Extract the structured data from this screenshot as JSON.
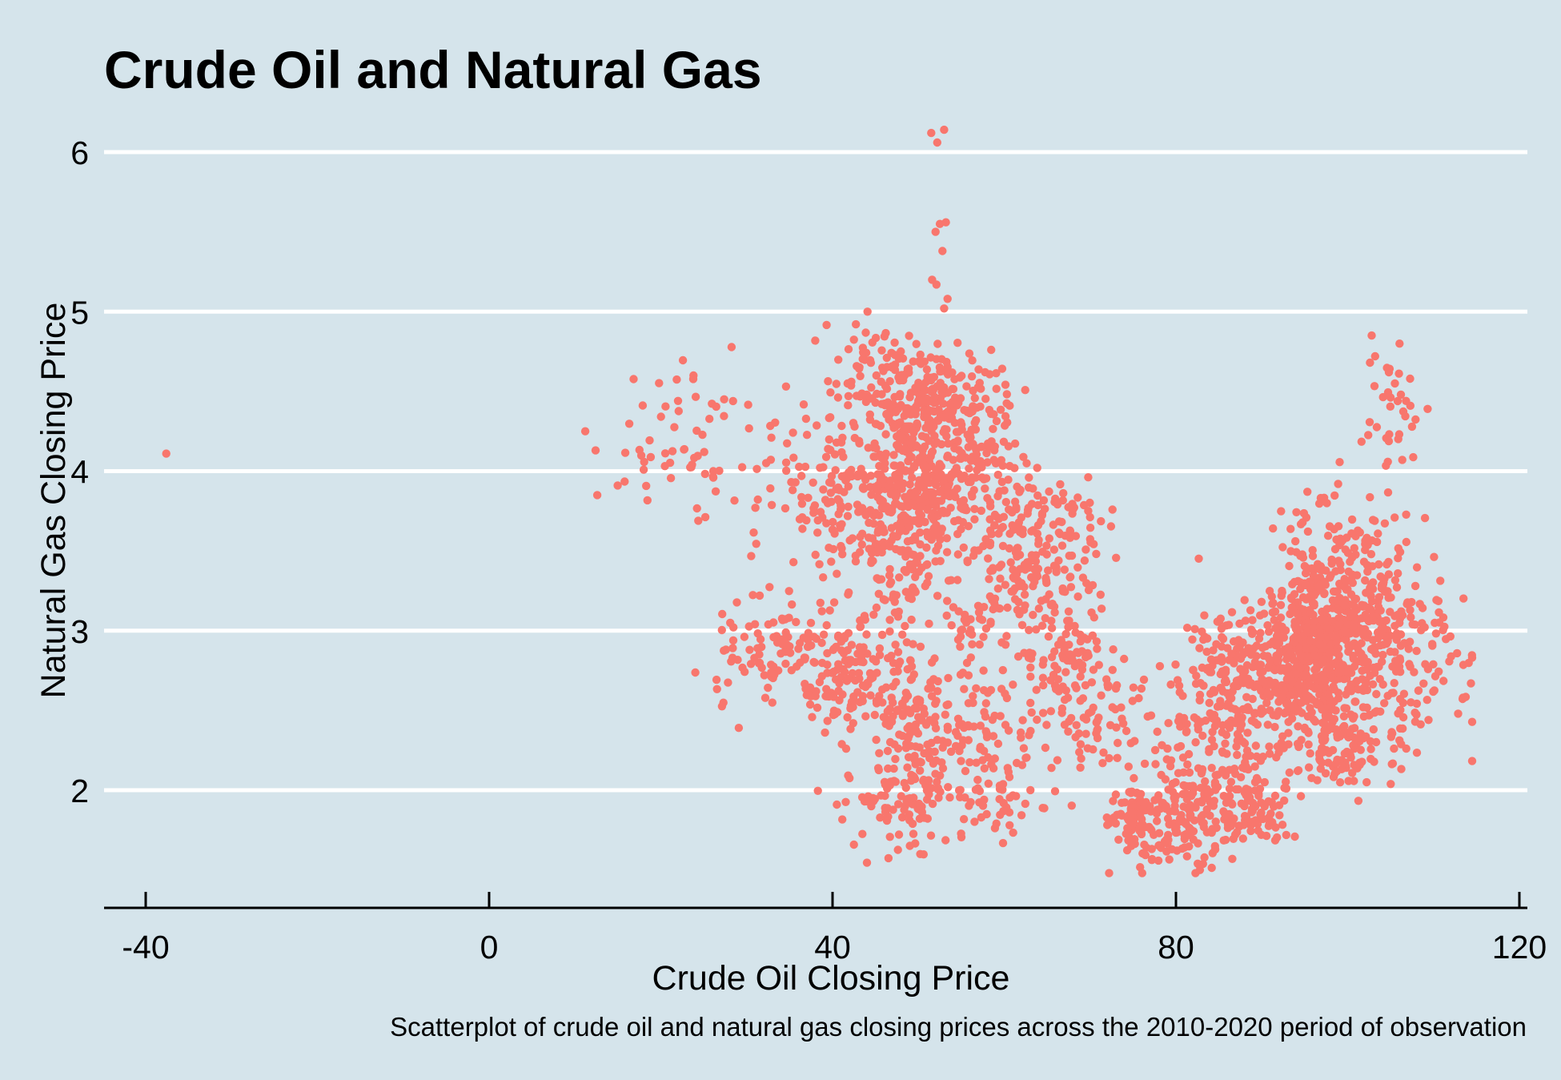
{
  "chart_data": {
    "type": "scatter",
    "title": "Crude Oil and Natural Gas",
    "xlabel": "Crude Oil Closing Price",
    "ylabel": "Natural Gas Closing Price",
    "caption": "Scatterplot of crude oil and natural gas closing prices across the 2010-2020 period of observation",
    "xlim": [
      -45,
      120
    ],
    "ylim": [
      1.25,
      6.3
    ],
    "x_ticks": [
      -40,
      0,
      40,
      80,
      120
    ],
    "x_tick_labels": [
      "-40",
      "0",
      "40",
      "80",
      "120"
    ],
    "y_ticks": [
      2,
      3,
      4,
      5,
      6
    ],
    "y_tick_labels": [
      "2",
      "3",
      "4",
      "5",
      "6"
    ],
    "grid": "horizontal major only",
    "point_color": "#f8766d",
    "background_color": "#d5e4eb",
    "clusters": [
      {
        "cx": 49,
        "cy": 3.85,
        "sx": 3.2,
        "sy": 0.3,
        "n": 380
      },
      {
        "cx": 51,
        "cy": 4.45,
        "sx": 2.0,
        "sy": 0.15,
        "n": 120
      },
      {
        "cx": 56,
        "cy": 4.15,
        "sx": 2.5,
        "sy": 0.25,
        "n": 170
      },
      {
        "cx": 45,
        "cy": 4.55,
        "sx": 2.5,
        "sy": 0.2,
        "n": 90
      },
      {
        "cx": 41,
        "cy": 3.8,
        "sx": 2.5,
        "sy": 0.25,
        "n": 90
      },
      {
        "cx": 62,
        "cy": 3.45,
        "sx": 3.5,
        "sy": 0.25,
        "n": 170
      },
      {
        "cx": 67,
        "cy": 3.65,
        "sx": 3.0,
        "sy": 0.2,
        "n": 50
      },
      {
        "cx": 22,
        "cy": 4.15,
        "sx": 4.5,
        "sy": 0.25,
        "n": 55
      },
      {
        "cx": 35,
        "cy": 4.05,
        "sx": 3.0,
        "sy": 0.25,
        "n": 40
      },
      {
        "cx": 33,
        "cy": 2.85,
        "sx": 3.5,
        "sy": 0.2,
        "n": 100
      },
      {
        "cx": 43,
        "cy": 2.75,
        "sx": 3.5,
        "sy": 0.2,
        "n": 160
      },
      {
        "cx": 50,
        "cy": 2.3,
        "sx": 3.0,
        "sy": 0.25,
        "n": 140
      },
      {
        "cx": 59,
        "cy": 2.45,
        "sx": 3.5,
        "sy": 0.25,
        "n": 90
      },
      {
        "cx": 56,
        "cy": 3.05,
        "sx": 1.2,
        "sy": 0.1,
        "n": 18
      },
      {
        "cx": 47,
        "cy": 1.9,
        "sx": 3.5,
        "sy": 0.15,
        "n": 70
      },
      {
        "cx": 59,
        "cy": 1.95,
        "sx": 4.0,
        "sy": 0.12,
        "n": 40
      },
      {
        "cx": 68,
        "cy": 2.8,
        "sx": 2.5,
        "sy": 0.25,
        "n": 90
      },
      {
        "cx": 72,
        "cy": 2.45,
        "sx": 3.0,
        "sy": 0.25,
        "n": 50
      },
      {
        "cx": 76,
        "cy": 1.8,
        "sx": 2.0,
        "sy": 0.14,
        "n": 110
      },
      {
        "cx": 82,
        "cy": 1.85,
        "sx": 2.5,
        "sy": 0.18,
        "n": 110
      },
      {
        "cx": 89,
        "cy": 1.85,
        "sx": 2.5,
        "sy": 0.12,
        "n": 90
      },
      {
        "cx": 86,
        "cy": 2.35,
        "sx": 4.0,
        "sy": 0.2,
        "n": 130
      },
      {
        "cx": 88,
        "cy": 2.8,
        "sx": 4.0,
        "sy": 0.18,
        "n": 180
      },
      {
        "cx": 96,
        "cy": 2.85,
        "sx": 3.0,
        "sy": 0.25,
        "n": 420
      },
      {
        "cx": 102,
        "cy": 3.0,
        "sx": 4.0,
        "sy": 0.25,
        "n": 280
      },
      {
        "cx": 100,
        "cy": 3.5,
        "sx": 3.5,
        "sy": 0.2,
        "n": 90
      },
      {
        "cx": 99,
        "cy": 2.25,
        "sx": 3.5,
        "sy": 0.12,
        "n": 110
      },
      {
        "cx": 109,
        "cy": 2.75,
        "sx": 3.5,
        "sy": 0.25,
        "n": 60
      },
      {
        "cx": 105,
        "cy": 4.35,
        "sx": 2.0,
        "sy": 0.2,
        "n": 30
      }
    ],
    "points": [
      {
        "x": -37.6,
        "y": 4.11
      },
      {
        "x": 51.5,
        "y": 6.12
      },
      {
        "x": 53.0,
        "y": 6.14
      },
      {
        "x": 52.2,
        "y": 6.06
      },
      {
        "x": 52.5,
        "y": 5.55
      },
      {
        "x": 53.2,
        "y": 5.56
      },
      {
        "x": 52.0,
        "y": 5.5
      },
      {
        "x": 52.8,
        "y": 5.38
      },
      {
        "x": 51.6,
        "y": 5.2
      },
      {
        "x": 52.1,
        "y": 5.17
      },
      {
        "x": 53.4,
        "y": 5.08
      },
      {
        "x": 53.0,
        "y": 5.02
      },
      {
        "x": 102.8,
        "y": 4.85
      },
      {
        "x": 103.2,
        "y": 4.72
      },
      {
        "x": 102.6,
        "y": 4.68
      },
      {
        "x": 104.8,
        "y": 4.62
      },
      {
        "x": 105.5,
        "y": 4.55
      },
      {
        "x": 106.2,
        "y": 4.48
      },
      {
        "x": 106.8,
        "y": 4.44
      },
      {
        "x": 107.3,
        "y": 4.41
      },
      {
        "x": 11.2,
        "y": 4.25
      },
      {
        "x": 12.6,
        "y": 3.85
      },
      {
        "x": 12.4,
        "y": 4.13
      },
      {
        "x": 23.8,
        "y": 4.6
      },
      {
        "x": 22.0,
        "y": 4.44
      }
    ]
  }
}
